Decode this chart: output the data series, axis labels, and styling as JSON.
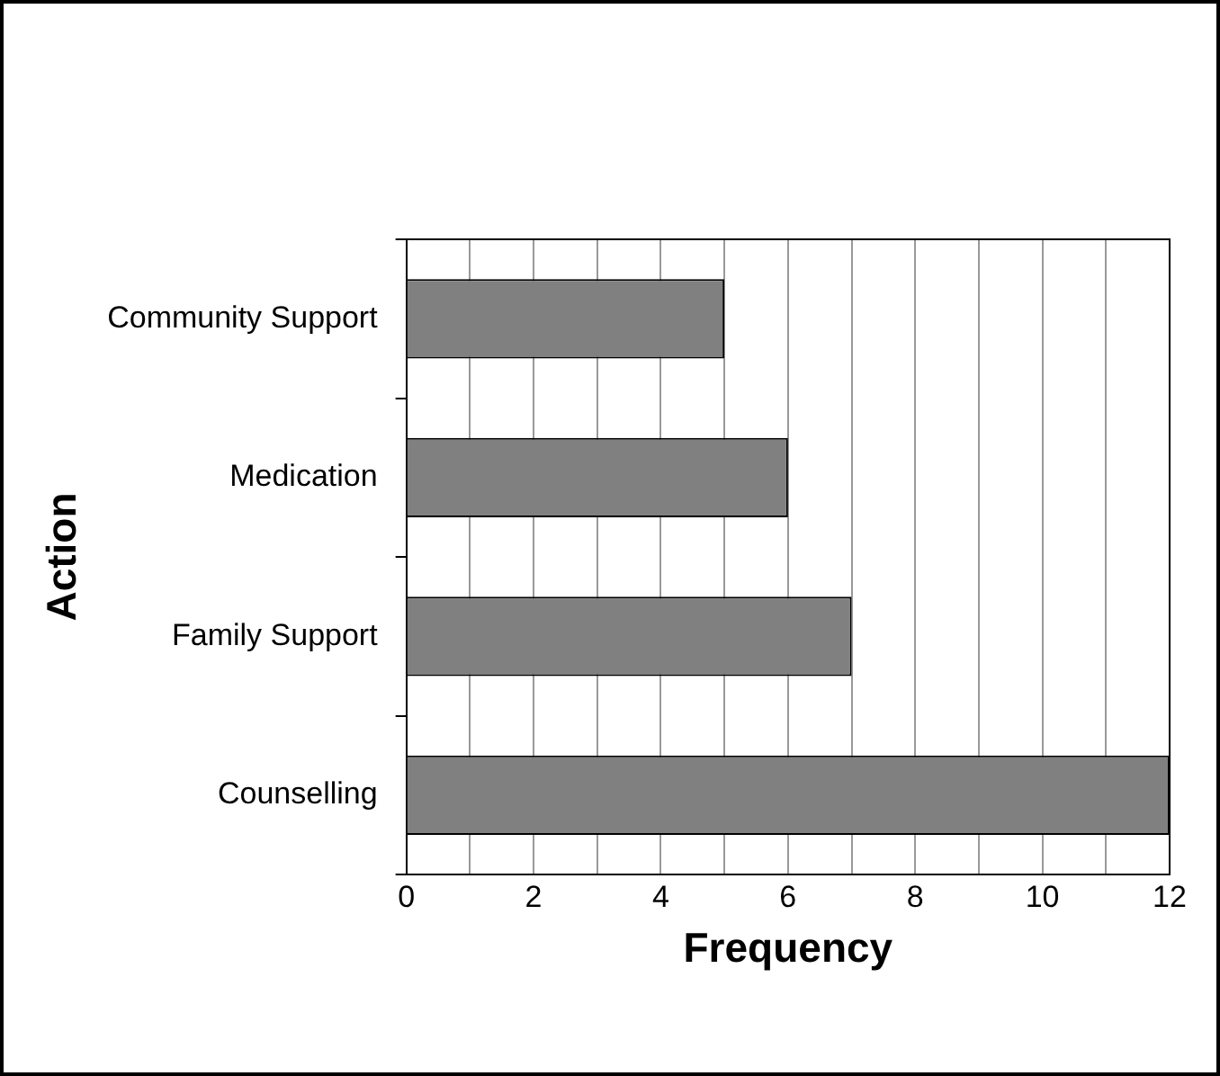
{
  "chart_data": {
    "type": "bar",
    "orientation": "horizontal",
    "xlabel": "Frequency",
    "ylabel": "Action",
    "categories": [
      "Community Support",
      "Medication",
      "Family Support",
      "Counselling"
    ],
    "values": [
      5,
      6,
      7,
      12
    ],
    "color": "#808080",
    "xlim": [
      0,
      12
    ],
    "xticks": [
      0,
      {
        "value": 1,
        "label": null
      },
      2,
      {
        "value": 3,
        "label": null
      },
      4,
      {
        "value": 5,
        "label": null
      },
      6,
      {
        "value": 7,
        "label": null
      },
      8,
      {
        "value": 9,
        "label": null
      },
      10,
      {
        "value": 11,
        "label": null
      },
      12
    ],
    "grid": "x",
    "legend": false
  }
}
